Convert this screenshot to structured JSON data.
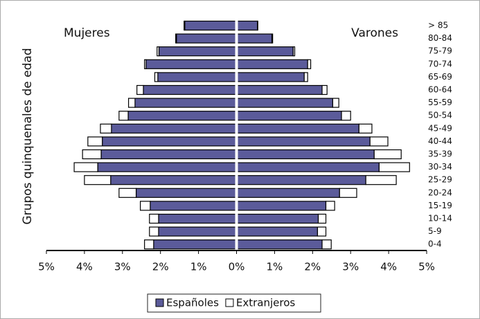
{
  "chart_data": {
    "type": "pyramid",
    "ylabel": "Grupos quinquenales de edad",
    "side_labels": [
      "Mujeres",
      "Varones"
    ],
    "categories": [
      "> 85",
      "80-84",
      "75-79",
      "70-74",
      "65-69",
      "60-64",
      "55-59",
      "50-54",
      "45-49",
      "40-44",
      "35-39",
      "30-34",
      "25-29",
      "20-24",
      "15-19",
      "10-14",
      "5-9",
      "0-4"
    ],
    "series": [
      {
        "name": "Españoles",
        "color": "#5b5b9a",
        "mujeres": [
          1.36,
          1.58,
          2.04,
          2.38,
          2.07,
          2.45,
          2.67,
          2.85,
          3.29,
          3.53,
          3.56,
          3.65,
          3.31,
          2.64,
          2.27,
          2.05,
          2.05,
          2.18
        ],
        "varones": [
          0.55,
          0.93,
          1.49,
          1.87,
          1.78,
          2.25,
          2.53,
          2.76,
          3.22,
          3.51,
          3.62,
          3.75,
          3.4,
          2.71,
          2.35,
          2.15,
          2.13,
          2.25
        ]
      },
      {
        "name": "Extranjeros",
        "color": "#ffffff",
        "mujeres": [
          0.02,
          0.02,
          0.05,
          0.04,
          0.08,
          0.17,
          0.17,
          0.24,
          0.29,
          0.38,
          0.49,
          0.62,
          0.69,
          0.45,
          0.26,
          0.24,
          0.24,
          0.24
        ],
        "varones": [
          0.01,
          0.02,
          0.04,
          0.08,
          0.09,
          0.13,
          0.16,
          0.24,
          0.34,
          0.47,
          0.71,
          0.8,
          0.8,
          0.45,
          0.23,
          0.2,
          0.22,
          0.24
        ]
      }
    ],
    "xlim": [
      -5,
      5
    ],
    "xticks": [
      {
        "value": -5,
        "label": "5%"
      },
      {
        "value": -4,
        "label": "4%"
      },
      {
        "value": -3,
        "label": "3%"
      },
      {
        "value": -2,
        "label": "2%"
      },
      {
        "value": -1,
        "label": "1%"
      },
      {
        "value": 0,
        "label": "0%"
      },
      {
        "value": 1,
        "label": "1%"
      },
      {
        "value": 2,
        "label": "2%"
      },
      {
        "value": 3,
        "label": "3%"
      },
      {
        "value": 4,
        "label": "4%"
      },
      {
        "value": 5,
        "label": "5%"
      }
    ]
  }
}
